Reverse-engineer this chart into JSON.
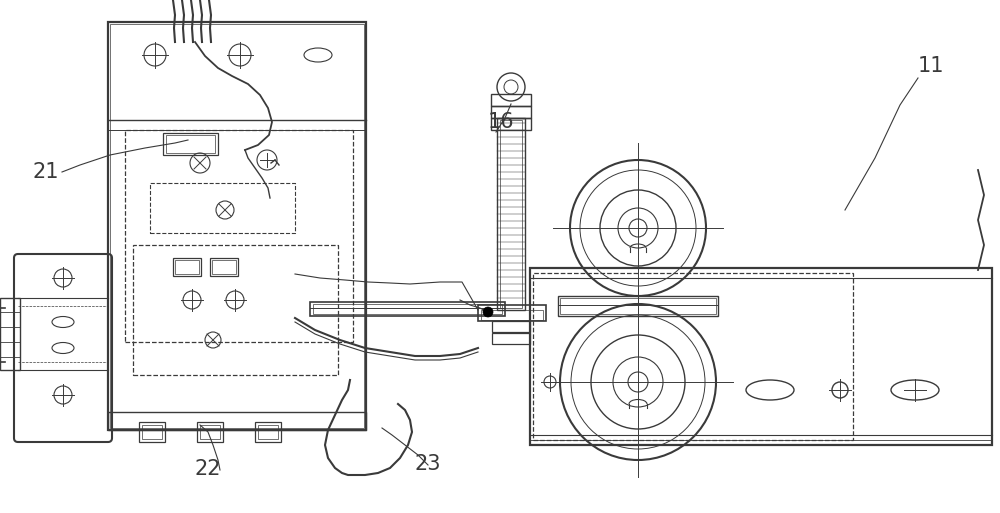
{
  "bg_color": "#ffffff",
  "line_color": "#3a3a3a",
  "dashed_color": "#3a3a3a",
  "label_fontsize": 15,
  "fig_w": 10.0,
  "fig_h": 5.13,
  "dpi": 100
}
